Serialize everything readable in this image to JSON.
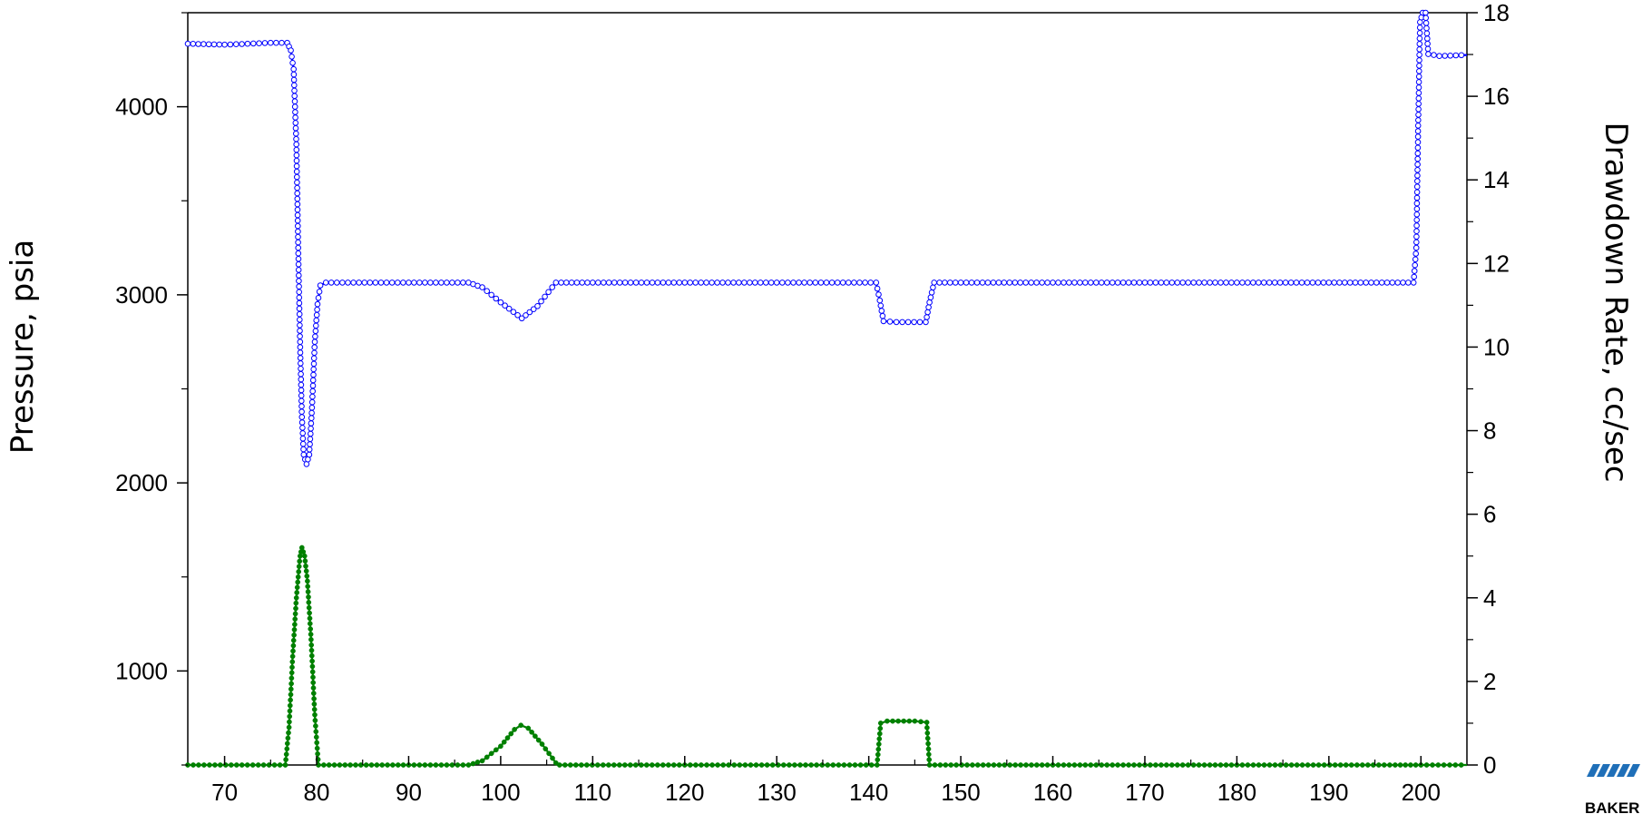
{
  "chart_data": {
    "type": "line",
    "xlabel": "",
    "ylabel": "Pressure, psia",
    "y2label": "Drawdown Rate, cc/sec",
    "xlim": [
      66,
      205
    ],
    "ylim": [
      500,
      4500
    ],
    "y2lim": [
      0,
      18
    ],
    "x_ticks": [
      70,
      80,
      90,
      100,
      110,
      120,
      130,
      140,
      150,
      160,
      170,
      180,
      190,
      200
    ],
    "y_ticks": [
      1000,
      2000,
      3000,
      4000
    ],
    "y2_ticks": [
      0,
      2,
      4,
      6,
      8,
      10,
      12,
      14,
      16,
      18
    ],
    "grid": false,
    "legend": "none",
    "series": [
      {
        "axis": "left",
        "color": "#0000ff",
        "marker": "open-circle",
        "points": [
          [
            66,
            4335
          ],
          [
            70,
            4330
          ],
          [
            75,
            4340
          ],
          [
            76.8,
            4340
          ],
          [
            77.2,
            4300
          ],
          [
            77.5,
            4200
          ],
          [
            77.8,
            3800
          ],
          [
            78.0,
            3250
          ],
          [
            78.2,
            2750
          ],
          [
            78.4,
            2350
          ],
          [
            78.6,
            2150
          ],
          [
            78.9,
            2100
          ],
          [
            79.2,
            2150
          ],
          [
            79.5,
            2400
          ],
          [
            79.8,
            2750
          ],
          [
            80.1,
            2950
          ],
          [
            80.4,
            3050
          ],
          [
            81,
            3065
          ],
          [
            90,
            3065
          ],
          [
            96.5,
            3065
          ],
          [
            98,
            3040
          ],
          [
            100,
            2960
          ],
          [
            102.3,
            2875
          ],
          [
            104,
            2940
          ],
          [
            106,
            3065
          ],
          [
            110,
            3065
          ],
          [
            120,
            3065
          ],
          [
            130,
            3065
          ],
          [
            140.8,
            3065
          ],
          [
            141.2,
            2970
          ],
          [
            141.6,
            2860
          ],
          [
            143,
            2855
          ],
          [
            146.2,
            2855
          ],
          [
            146.6,
            2960
          ],
          [
            147.1,
            3065
          ],
          [
            150,
            3065
          ],
          [
            160,
            3065
          ],
          [
            170,
            3065
          ],
          [
            180,
            3065
          ],
          [
            190,
            3065
          ],
          [
            199.2,
            3065
          ],
          [
            199.5,
            3250
          ],
          [
            199.7,
            3900
          ],
          [
            199.9,
            4450
          ],
          [
            200.2,
            4500
          ],
          [
            200.5,
            4500
          ],
          [
            200.8,
            4280
          ],
          [
            202,
            4270
          ],
          [
            205,
            4275
          ]
        ]
      },
      {
        "axis": "right",
        "color": "#008000",
        "marker": "filled-circle",
        "points": [
          [
            66,
            0
          ],
          [
            76.6,
            0
          ],
          [
            77.0,
            0.9
          ],
          [
            77.4,
            2.6
          ],
          [
            77.8,
            4.0
          ],
          [
            78.2,
            5.0
          ],
          [
            78.4,
            5.2
          ],
          [
            78.7,
            5.0
          ],
          [
            79.0,
            4.4
          ],
          [
            79.4,
            3.0
          ],
          [
            79.8,
            1.2
          ],
          [
            80.2,
            0
          ],
          [
            90,
            0
          ],
          [
            96.5,
            0
          ],
          [
            98,
            0.1
          ],
          [
            100,
            0.45
          ],
          [
            101.5,
            0.85
          ],
          [
            102.2,
            0.95
          ],
          [
            103,
            0.88
          ],
          [
            104.5,
            0.5
          ],
          [
            106,
            0.05
          ],
          [
            106.4,
            0
          ],
          [
            120,
            0
          ],
          [
            140.9,
            0
          ],
          [
            141.3,
            1.0
          ],
          [
            142,
            1.05
          ],
          [
            145,
            1.05
          ],
          [
            146.3,
            1.02
          ],
          [
            146.6,
            0
          ],
          [
            160,
            0
          ],
          [
            180,
            0
          ],
          [
            197.2,
            0
          ],
          [
            200,
            0
          ],
          [
            205,
            0
          ]
        ]
      }
    ]
  },
  "logo": {
    "text": "BAKER"
  }
}
